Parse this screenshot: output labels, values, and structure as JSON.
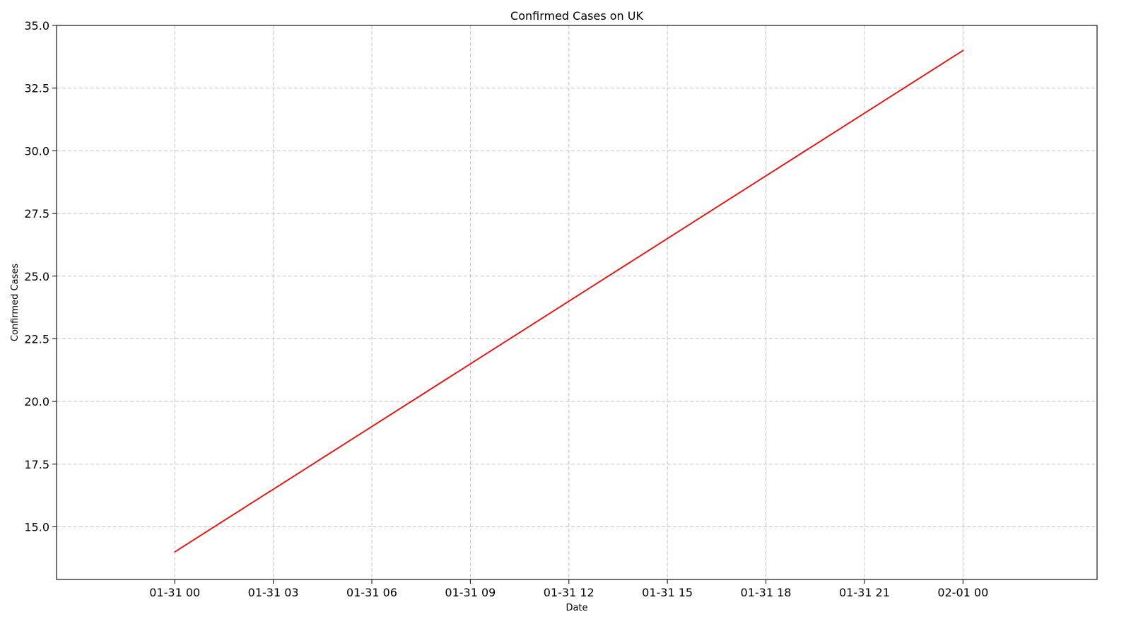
{
  "chart_data": {
    "type": "line",
    "title": "Confirmed Cases on UK",
    "xlabel": "Date",
    "ylabel": "Confirmed Cases",
    "x_tick_labels": [
      "01-31 00",
      "01-31 03",
      "01-31 06",
      "01-31 09",
      "01-31 12",
      "01-31 15",
      "01-31 18",
      "01-31 21",
      "02-01 00"
    ],
    "y_tick_labels": [
      "15.0",
      "17.5",
      "20.0",
      "22.5",
      "25.0",
      "27.5",
      "30.0",
      "32.5",
      "35.0"
    ],
    "y_ticks": [
      15.0,
      17.5,
      20.0,
      22.5,
      25.0,
      27.5,
      30.0,
      32.5,
      35.0
    ],
    "ylim": [
      12.9,
      35.0
    ],
    "xlim": [
      "2020-01-30 20:24",
      "2020-02-01 04:05"
    ],
    "grid": true,
    "series": [
      {
        "color": "#ff0000",
        "x": [
          "2020-01-31 00:00",
          "2020-02-01 00:00"
        ],
        "y": [
          14,
          34
        ]
      }
    ]
  }
}
